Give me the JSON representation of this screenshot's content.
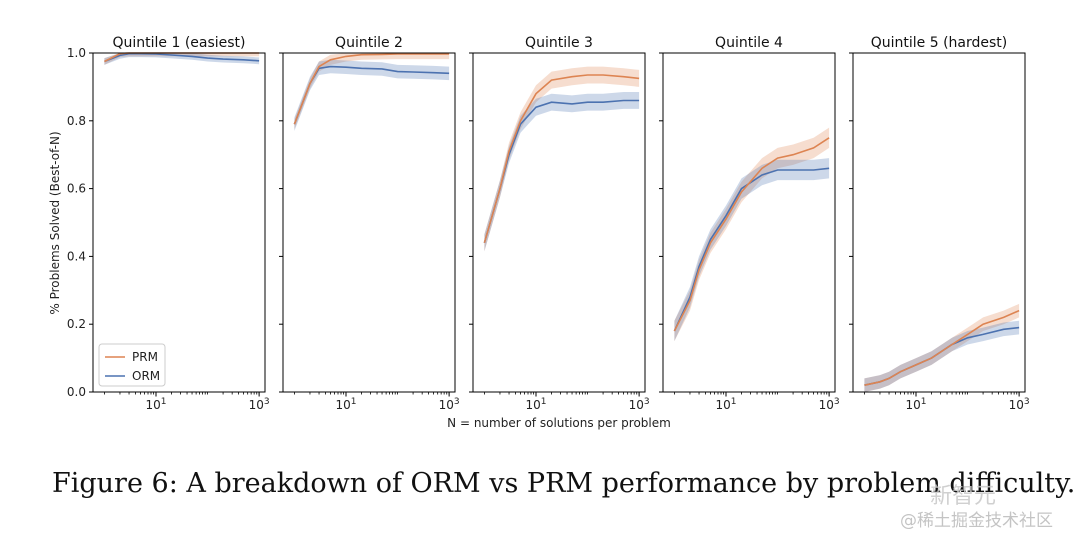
{
  "figure": {
    "caption": "Figure 6: A breakdown of ORM vs PRM performance by problem difficulty.",
    "watermark_top": "新智元",
    "watermark_bottom": "@稀土掘金技术社区"
  },
  "chart_data": {
    "type": "line",
    "xlabel": "N = number of solutions per problem",
    "ylabel": "% Problems Solved (Best-of-N)",
    "xscale": "log",
    "xlim": [
      0.6,
      1300
    ],
    "ylim": [
      0.0,
      1.0
    ],
    "yticks": [
      "0.0",
      "0.2",
      "0.4",
      "0.6",
      "0.8",
      "1.0"
    ],
    "xticks": [
      {
        "base": "10",
        "exp": "1",
        "value": 10
      },
      {
        "base": "10",
        "exp": "3",
        "value": 1000
      }
    ],
    "legend": {
      "placement": "bottom-left",
      "entries": [
        "PRM",
        "ORM"
      ]
    },
    "colors": {
      "PRM": "#dd8452",
      "ORM": "#4c72b0"
    },
    "x": [
      1,
      2,
      3,
      5,
      10,
      20,
      50,
      100,
      200,
      500,
      1000
    ],
    "panels": [
      {
        "title": "Quintile 1 (easiest)",
        "series": [
          {
            "name": "PRM",
            "values": [
              0.975,
              0.998,
              1.0,
              1.0,
              1.0,
              1.0,
              1.0,
              1.0,
              1.0,
              1.0,
              1.0
            ],
            "band": 0.01
          },
          {
            "name": "ORM",
            "values": [
              0.975,
              0.993,
              0.998,
              0.998,
              0.997,
              0.994,
              0.99,
              0.985,
              0.982,
              0.98,
              0.977
            ],
            "band": 0.01
          }
        ]
      },
      {
        "title": "Quintile 2",
        "series": [
          {
            "name": "PRM",
            "values": [
              0.79,
              0.91,
              0.96,
              0.98,
              0.99,
              0.995,
              0.996,
              0.997,
              0.997,
              0.997,
              0.997
            ],
            "band": 0.015
          },
          {
            "name": "ORM",
            "values": [
              0.79,
              0.91,
              0.955,
              0.96,
              0.958,
              0.955,
              0.953,
              0.945,
              0.944,
              0.942,
              0.94
            ],
            "band": 0.02
          }
        ]
      },
      {
        "title": "Quintile 3",
        "series": [
          {
            "name": "PRM",
            "values": [
              0.44,
              0.6,
              0.71,
              0.8,
              0.88,
              0.92,
              0.93,
              0.935,
              0.935,
              0.93,
              0.925
            ],
            "band": 0.025
          },
          {
            "name": "ORM",
            "values": [
              0.44,
              0.6,
              0.7,
              0.79,
              0.84,
              0.855,
              0.85,
              0.855,
              0.855,
              0.86,
              0.86
            ],
            "band": 0.025
          }
        ]
      },
      {
        "title": "Quintile 4",
        "series": [
          {
            "name": "PRM",
            "values": [
              0.18,
              0.27,
              0.36,
              0.44,
              0.51,
              0.59,
              0.66,
              0.69,
              0.7,
              0.72,
              0.75
            ],
            "band": 0.03
          },
          {
            "name": "ORM",
            "values": [
              0.18,
              0.28,
              0.37,
              0.45,
              0.52,
              0.6,
              0.64,
              0.655,
              0.655,
              0.655,
              0.66
            ],
            "band": 0.03
          }
        ]
      },
      {
        "title": "Quintile 5 (hardest)",
        "series": [
          {
            "name": "PRM",
            "values": [
              0.02,
              0.03,
              0.04,
              0.06,
              0.08,
              0.1,
              0.14,
              0.17,
              0.2,
              0.22,
              0.24
            ],
            "band": 0.02
          },
          {
            "name": "ORM",
            "values": [
              0.02,
              0.03,
              0.04,
              0.06,
              0.08,
              0.1,
              0.14,
              0.16,
              0.17,
              0.185,
              0.19
            ],
            "band": 0.02
          }
        ]
      }
    ]
  }
}
